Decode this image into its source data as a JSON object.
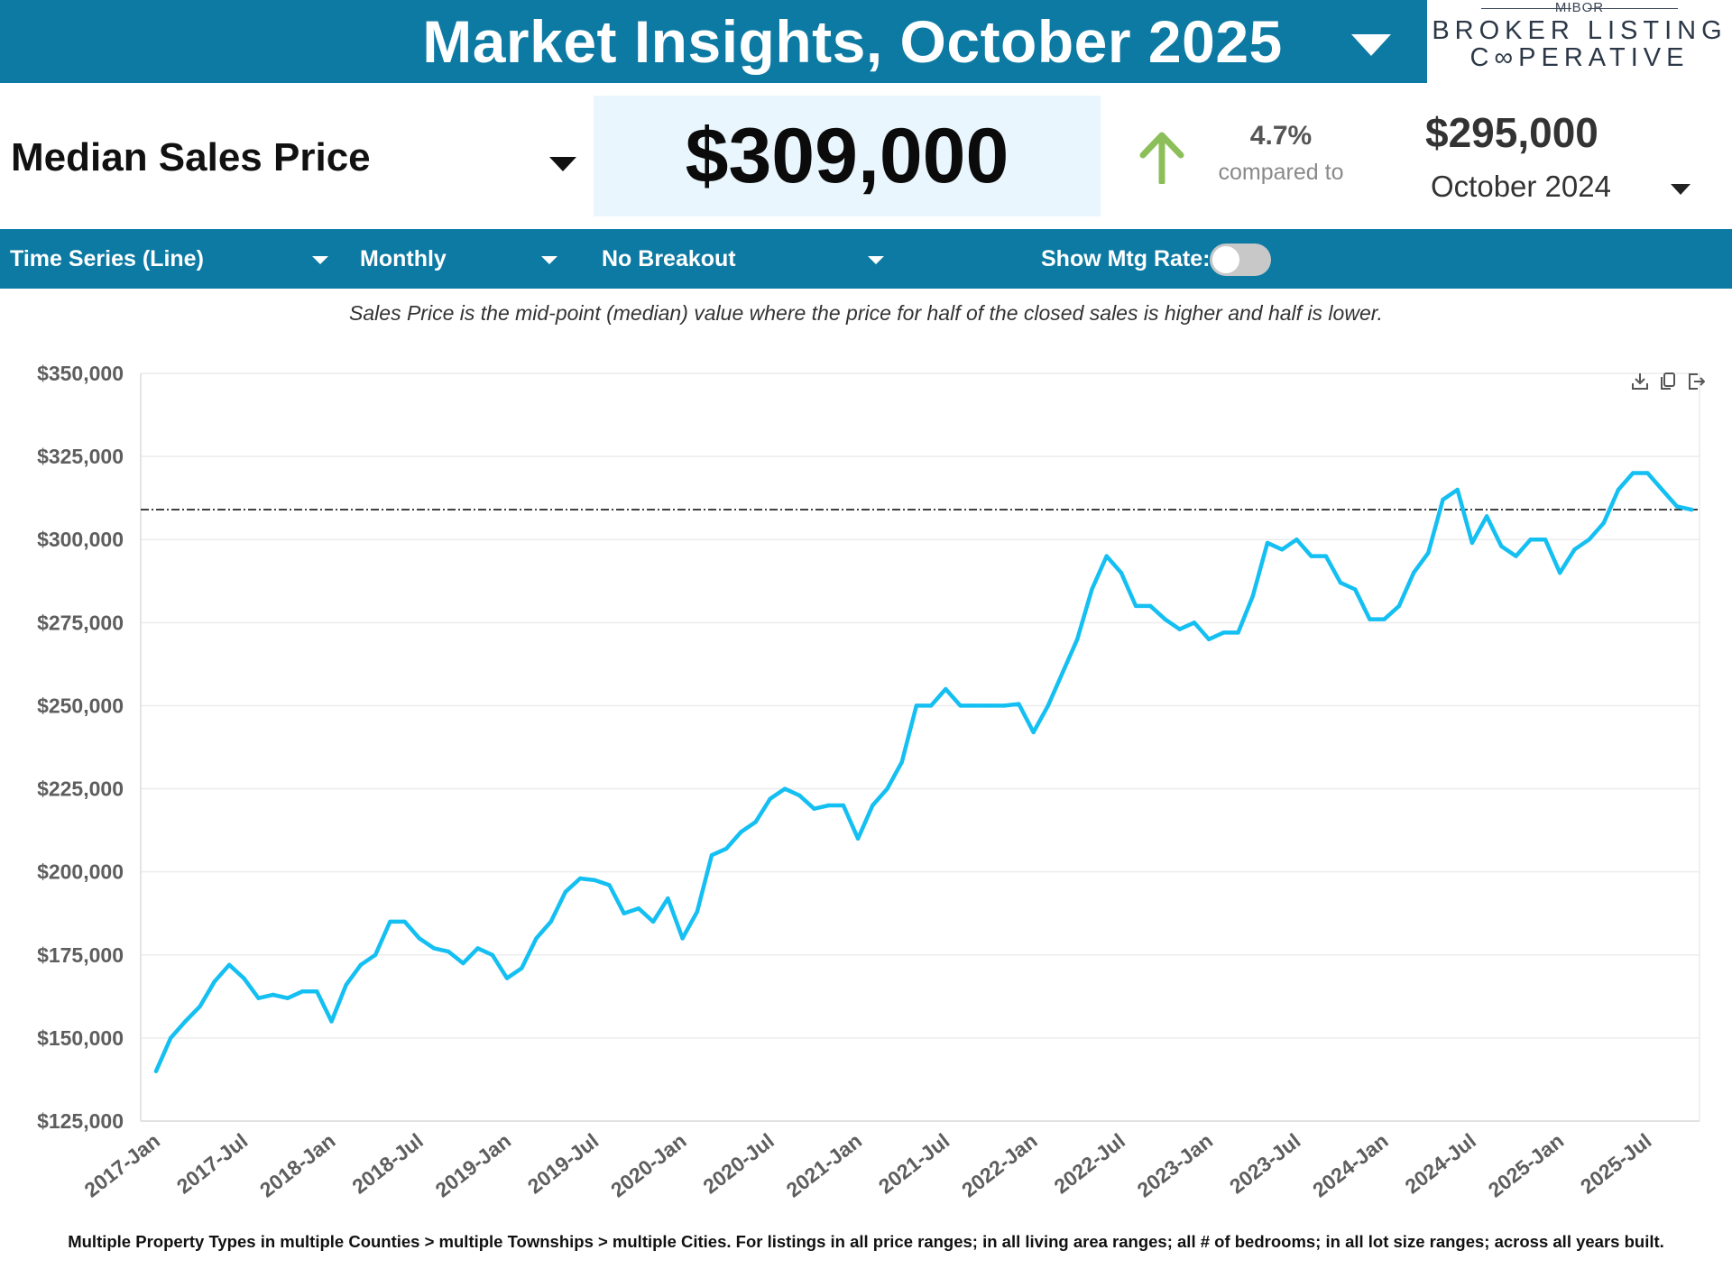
{
  "header": {
    "title": "Market Insights, October 2025"
  },
  "logo": {
    "top_text": "MIBOR",
    "line1": "BROKER LISTING",
    "line2": "C∞PERATIVE"
  },
  "metric": {
    "name": "Median Sales Price",
    "value": "$309,000",
    "change_pct": "4.7%",
    "compared_to_label": "compared to",
    "comparison_value": "$295,000",
    "comparison_period": "October 2024",
    "change_direction": "up",
    "arrow_color": "#8cbf5a"
  },
  "controls": {
    "chart_type": "Time Series (Line)",
    "interval": "Monthly",
    "breakout": "No Breakout",
    "mtg_rate_label": "Show Mtg Rate:",
    "mtg_rate_on": false
  },
  "description": "Sales Price is the mid-point (median) value where the price for half of the closed sales is higher and half is lower.",
  "toolbar": {
    "icons": [
      "download-icon",
      "copy-icon",
      "export-icon"
    ]
  },
  "footnote": "Multiple Property Types in multiple Counties > multiple Townships > multiple Cities. For listings in all price ranges; in all living area ranges; all # of bedrooms; in all lot size ranges; across all years built.",
  "colors": {
    "header_bg": "#0d7aa3",
    "value_box_bg": "#eaf6fd",
    "line": "#14bff2",
    "reference_line": "#333333"
  },
  "chart_data": {
    "type": "line",
    "title": "",
    "xlabel": "",
    "ylabel": "",
    "ylim": [
      125000,
      350000
    ],
    "y_ticks": [
      125000,
      150000,
      175000,
      200000,
      225000,
      250000,
      275000,
      300000,
      325000,
      350000
    ],
    "y_tick_labels": [
      "$125,000",
      "$150,000",
      "$175,000",
      "$200,000",
      "$225,000",
      "$250,000",
      "$275,000",
      "$300,000",
      "$325,000",
      "$350,000"
    ],
    "x_tick_labels": [
      "2017-Jan",
      "2017-Jul",
      "2018-Jan",
      "2018-Jul",
      "2019-Jan",
      "2019-Jul",
      "2020-Jan",
      "2020-Jul",
      "2021-Jan",
      "2021-Jul",
      "2022-Jan",
      "2022-Jul",
      "2023-Jan",
      "2023-Jul",
      "2024-Jan",
      "2024-Jul",
      "2025-Jan",
      "2025-Jul"
    ],
    "x_start": "2017-Jan",
    "x_end": "2025-Oct",
    "reference_line": 309000,
    "grid": true,
    "series": [
      {
        "values": [
          140000,
          150000,
          155000,
          159500,
          167000,
          172000,
          168000,
          162000,
          163000,
          162000,
          164000,
          164000,
          155000,
          166000,
          172000,
          175000,
          185000,
          185000,
          180000,
          177000,
          176000,
          172500,
          177000,
          175000,
          168000,
          171000,
          180000,
          185000,
          194000,
          198000,
          197500,
          196000,
          187500,
          189000,
          185000,
          192000,
          180000,
          188000,
          205000,
          207000,
          212000,
          215000,
          222000,
          225000,
          223000,
          219000,
          220000,
          220000,
          210000,
          220000,
          225000,
          233000,
          250000,
          250000,
          255000,
          250000,
          250000,
          250000,
          250000,
          250500,
          242000,
          250000,
          260000,
          270000,
          285000,
          295000,
          290000,
          280000,
          280000,
          276000,
          273000,
          275000,
          270000,
          272000,
          272000,
          283000,
          299000,
          297000,
          300000,
          295000,
          295000,
          287000,
          285000,
          276000,
          276000,
          280000,
          290000,
          296000,
          312000,
          315000,
          299000,
          307000,
          298000,
          295000,
          300000,
          300000,
          290000,
          297000,
          300000,
          305000,
          315000,
          320000,
          320000,
          315000,
          310000,
          309000
        ]
      }
    ]
  }
}
